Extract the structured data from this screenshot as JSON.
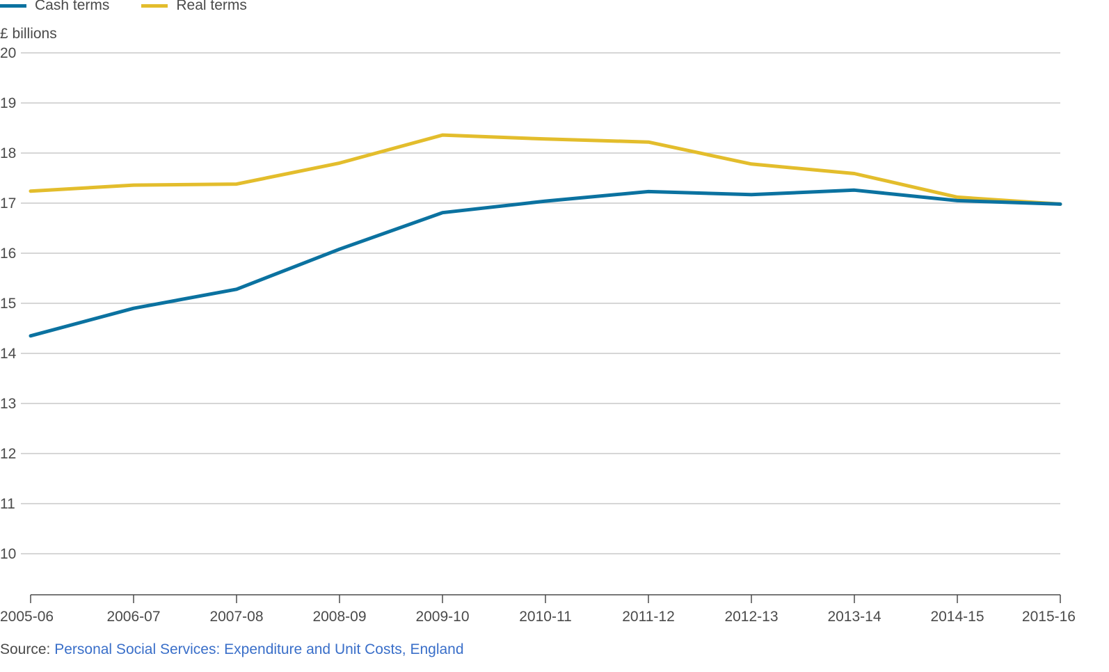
{
  "chart_data": {
    "type": "line",
    "title": "",
    "ylabel": "£ billions",
    "xlabel": "",
    "ylim": [
      10,
      20
    ],
    "yticks": [
      10,
      11,
      12,
      13,
      14,
      15,
      16,
      17,
      18,
      19,
      20
    ],
    "grid": true,
    "legend_position": "top-left",
    "categories": [
      "2005-06",
      "2006-07",
      "2007-08",
      "2008-09",
      "2009-10",
      "2010-11",
      "2011-12",
      "2012-13",
      "2013-14",
      "2014-15",
      "2015-16"
    ],
    "series": [
      {
        "name": "Cash terms",
        "color": "#0b72a0",
        "values": [
          14.35,
          14.9,
          15.28,
          16.08,
          16.81,
          17.04,
          17.23,
          17.17,
          17.26,
          17.05,
          16.98
        ]
      },
      {
        "name": "Real terms",
        "color": "#e3bd2c",
        "values": [
          17.24,
          17.36,
          17.38,
          17.8,
          18.36,
          18.28,
          18.22,
          17.78,
          17.59,
          17.12,
          16.98
        ]
      }
    ]
  },
  "source": {
    "prefix": "Source: ",
    "link_text": "Personal Social Services: Expenditure and Unit Costs, England"
  },
  "colors": {
    "grid": "#c8c8c8",
    "axis": "#4a4a4a",
    "link": "#3a6fc9"
  }
}
